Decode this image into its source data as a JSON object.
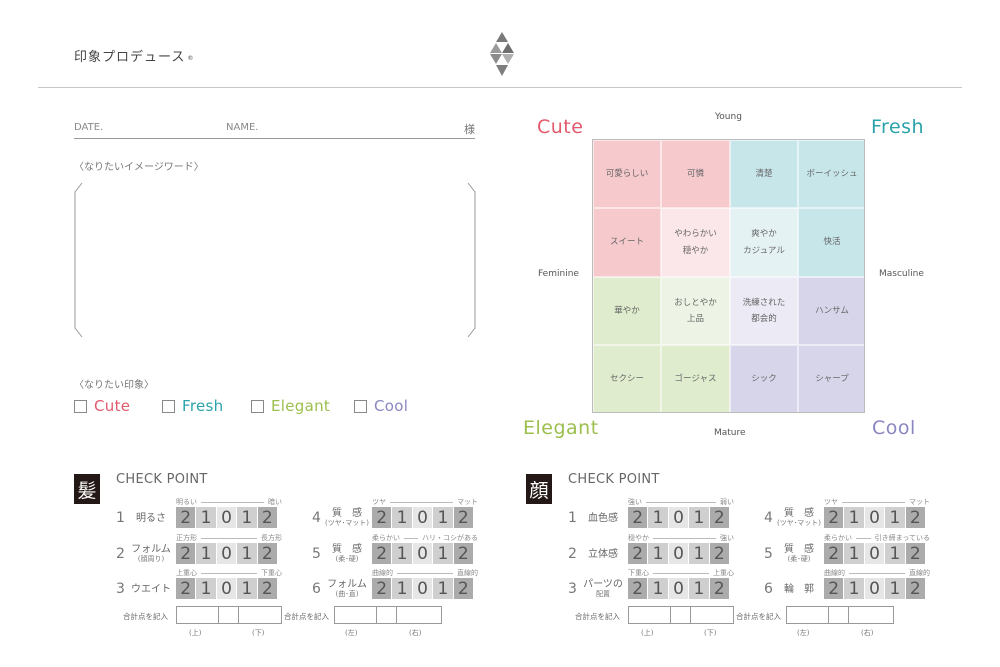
{
  "header": {
    "brand": "印象プロデュース",
    "brand_mark": "®"
  },
  "form": {
    "date_label": "DATE.",
    "name_label": "NAME.",
    "honorific": "様",
    "image_words_label": "〈なりたいイメージワード〉",
    "impression_label": "〈なりたい印象〉",
    "options": [
      {
        "label": "Cute",
        "color": "#e25a6e"
      },
      {
        "label": "Fresh",
        "color": "#2aa3aa"
      },
      {
        "label": "Elegant",
        "color": "#9cbf4e"
      },
      {
        "label": "Cool",
        "color": "#8a86c2"
      }
    ]
  },
  "matrix": {
    "corners": {
      "cute": {
        "label": "Cute",
        "color": "#e25a6e"
      },
      "fresh": {
        "label": "Fresh",
        "color": "#2aa3aa"
      },
      "elegant": {
        "label": "Elegant",
        "color": "#9cbf4e"
      },
      "cool": {
        "label": "Cool",
        "color": "#8a86c2"
      }
    },
    "axes": {
      "top": "Young",
      "bottom": "Mature",
      "left": "Feminine",
      "right": "Masculine"
    },
    "cells": {
      "r1c1": "可愛らしい",
      "r1c2": "可憐",
      "r1c3": "清楚",
      "r1c4": "ボーイッシュ",
      "r2c1": "スイート",
      "r2c2a": "やわらかい",
      "r2c2b": "穏やか",
      "r2c3a": "爽やか",
      "r2c3b": "カジュアル",
      "r2c4": "快活",
      "r3c1": "華やか",
      "r3c2a": "おしとやか",
      "r3c2b": "上品",
      "r3c3a": "洗練された",
      "r3c3b": "都会的",
      "r3c4": "ハンサム",
      "r4c1": "セクシー",
      "r4c2": "ゴージャス",
      "r4c3": "シック",
      "r4c4": "シャープ"
    }
  },
  "scale_digits": [
    "2",
    "1",
    "0",
    "1",
    "2"
  ],
  "hair": {
    "kanji": "髪",
    "title": "CHECK POINT",
    "items": [
      {
        "num": "1",
        "label": "明るさ",
        "sub": "",
        "left": "明るい",
        "right": "暗い"
      },
      {
        "num": "2",
        "label": "フォルム",
        "sub": "(顔周り)",
        "left": "正方形",
        "right": "長方形"
      },
      {
        "num": "3",
        "label": "ウエイト",
        "sub": "",
        "left": "上重心",
        "right": "下重心"
      },
      {
        "num": "4",
        "label": "質　感",
        "sub": "(ツヤ･マット)",
        "left": "ツヤ",
        "right": "マット"
      },
      {
        "num": "5",
        "label": "質　感",
        "sub": "(柔･硬)",
        "left": "柔らかい",
        "right": "ハリ・コシがある"
      },
      {
        "num": "6",
        "label": "フォルム",
        "sub": "(曲･直)",
        "left": "曲線的",
        "right": "直線的"
      }
    ],
    "total_label": "合計点を記入",
    "foot_left_1": "(上)",
    "foot_left_2": "(下)",
    "foot_right_1": "(左)",
    "foot_right_2": "(右)"
  },
  "face": {
    "kanji": "顔",
    "title": "CHECK POINT",
    "items": [
      {
        "num": "1",
        "label": "血色感",
        "sub": "",
        "left": "強い",
        "right": "弱い"
      },
      {
        "num": "2",
        "label": "立体感",
        "sub": "",
        "left": "穏やか",
        "right": "強い"
      },
      {
        "num": "3",
        "label": "パーツの",
        "sub": "配置",
        "left": "下重心",
        "right": "上重心"
      },
      {
        "num": "4",
        "label": "質　感",
        "sub": "(ツヤ･マット)",
        "left": "ツヤ",
        "right": "マット"
      },
      {
        "num": "5",
        "label": "質　感",
        "sub": "(柔･硬)",
        "left": "柔らかい",
        "right": "引き締まっている"
      },
      {
        "num": "6",
        "label": "輪　郭",
        "sub": "",
        "left": "曲線的",
        "right": "直線的"
      }
    ],
    "total_label": "合計点を記入",
    "foot_left_1": "(上)",
    "foot_left_2": "(下)",
    "foot_right_1": "(左)",
    "foot_right_2": "(右)"
  }
}
